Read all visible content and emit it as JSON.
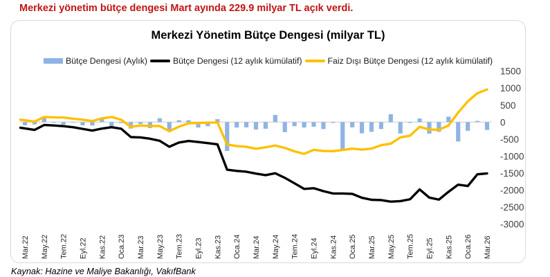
{
  "headline": "Merkezi yönetim bütçe dengesi Mart ayında 229.9 milyar TL açık verdi.",
  "headline_color": "#c01414",
  "source_note": "Kaynak: Hazine ve Maliye Bakanlığı, VakıfBank",
  "chart_data": {
    "type": "bar",
    "combo": "bar+line",
    "title": "Merkezi Yönetim Bütçe Dengesi (milyar TL)",
    "categories": [
      "Mar.22",
      "Nis.22",
      "May.22",
      "Haz.22",
      "Tem.22",
      "Ağu.22",
      "Eyl.22",
      "Eki.22",
      "Kas.22",
      "Ara.22",
      "Oca.23",
      "Şub.23",
      "Mar.23",
      "Nis.23",
      "May.23",
      "Haz.23",
      "Tem.23",
      "Ağu.23",
      "Eyl.23",
      "Eki.23",
      "Kas.23",
      "Ara.23",
      "Oca.24",
      "Şub.24",
      "Mar.24",
      "Nis.24",
      "May.24",
      "Haz.24",
      "Tem.24",
      "Ağu.24",
      "Eyl.24",
      "Eki.24",
      "Kas.24",
      "Ara.24",
      "Oca.25",
      "Şub.25",
      "Mar.25",
      "Nis.25",
      "May.25",
      "Haz.25",
      "Tem.25",
      "Ağu.25",
      "Eyl.25",
      "Eki.25",
      "Kas.25",
      "Ara.25",
      "Oca.26",
      "Şub.26",
      "Mar.26"
    ],
    "x_tick_labels": [
      "Mar.22",
      "May.22",
      "Tem.22",
      "Eyl.22",
      "Kas.22",
      "Oca.23",
      "Mar.23",
      "May.23",
      "Tem.23",
      "Eyl.23",
      "Kas.23",
      "Oca.24",
      "Mar.24",
      "May.24",
      "Tem.24",
      "Eyl.24",
      "Kas.24",
      "Oca.25",
      "Mar.25",
      "May.25",
      "Tem.25",
      "Eyl.25",
      "Kas.25",
      "Oca.26",
      "Mar.26"
    ],
    "series": [
      {
        "name": "Bütçe Dengesi (Aylık)",
        "type": "bar",
        "color": "#8fb4e3",
        "values": [
          -95,
          -70,
          125,
          -20,
          -75,
          -15,
          -95,
          -100,
          90,
          -125,
          -30,
          -190,
          -55,
          -175,
          115,
          -245,
          55,
          55,
          -160,
          -120,
          85,
          -850,
          -160,
          -155,
          -220,
          -195,
          210,
          -295,
          -120,
          -160,
          -135,
          -205,
          -25,
          -795,
          -155,
          -330,
          -285,
          -205,
          230,
          -335,
          -25,
          105,
          -340,
          -285,
          160,
          -570,
          -255,
          35,
          -229.9
        ]
      },
      {
        "name": "Bütçe Dengesi (12 aylık kümülatif)",
        "type": "line",
        "color": "#000000",
        "values": [
          -165,
          -230,
          -85,
          -100,
          -120,
          -150,
          -200,
          -250,
          -190,
          -150,
          -195,
          -440,
          -450,
          -490,
          -550,
          -725,
          -600,
          -555,
          -585,
          -620,
          -655,
          -1400,
          -1435,
          -1460,
          -1515,
          -1560,
          -1505,
          -1640,
          -1800,
          -1965,
          -1945,
          -2030,
          -2100,
          -2100,
          -2110,
          -2225,
          -2285,
          -2295,
          -2340,
          -2325,
          -2270,
          -1980,
          -2220,
          -2280,
          -2050,
          -1840,
          -1880,
          -1535,
          -1510
        ]
      },
      {
        "name": "Faiz Dışı Bütçe Dengesi (12 aylık kümülatif)",
        "type": "line",
        "color": "#ffc000",
        "values": [
          70,
          15,
          150,
          140,
          135,
          100,
          70,
          30,
          110,
          150,
          70,
          -140,
          -100,
          -115,
          -115,
          -270,
          -135,
          -35,
          -25,
          -18,
          -10,
          -660,
          -705,
          -725,
          -785,
          -740,
          -690,
          -760,
          -860,
          -935,
          -815,
          -850,
          -855,
          -820,
          -780,
          -810,
          -780,
          -680,
          -635,
          -450,
          -400,
          -140,
          -220,
          -225,
          -100,
          280,
          610,
          850,
          960
        ]
      }
    ],
    "ylim": [
      -3000,
      1500
    ],
    "yticks": [
      1500,
      1000,
      500,
      0,
      -500,
      -1000,
      -1500,
      -2000,
      -2500,
      -3000
    ],
    "xlabel": "",
    "ylabel": "",
    "grid": false,
    "legend_position": "top"
  }
}
